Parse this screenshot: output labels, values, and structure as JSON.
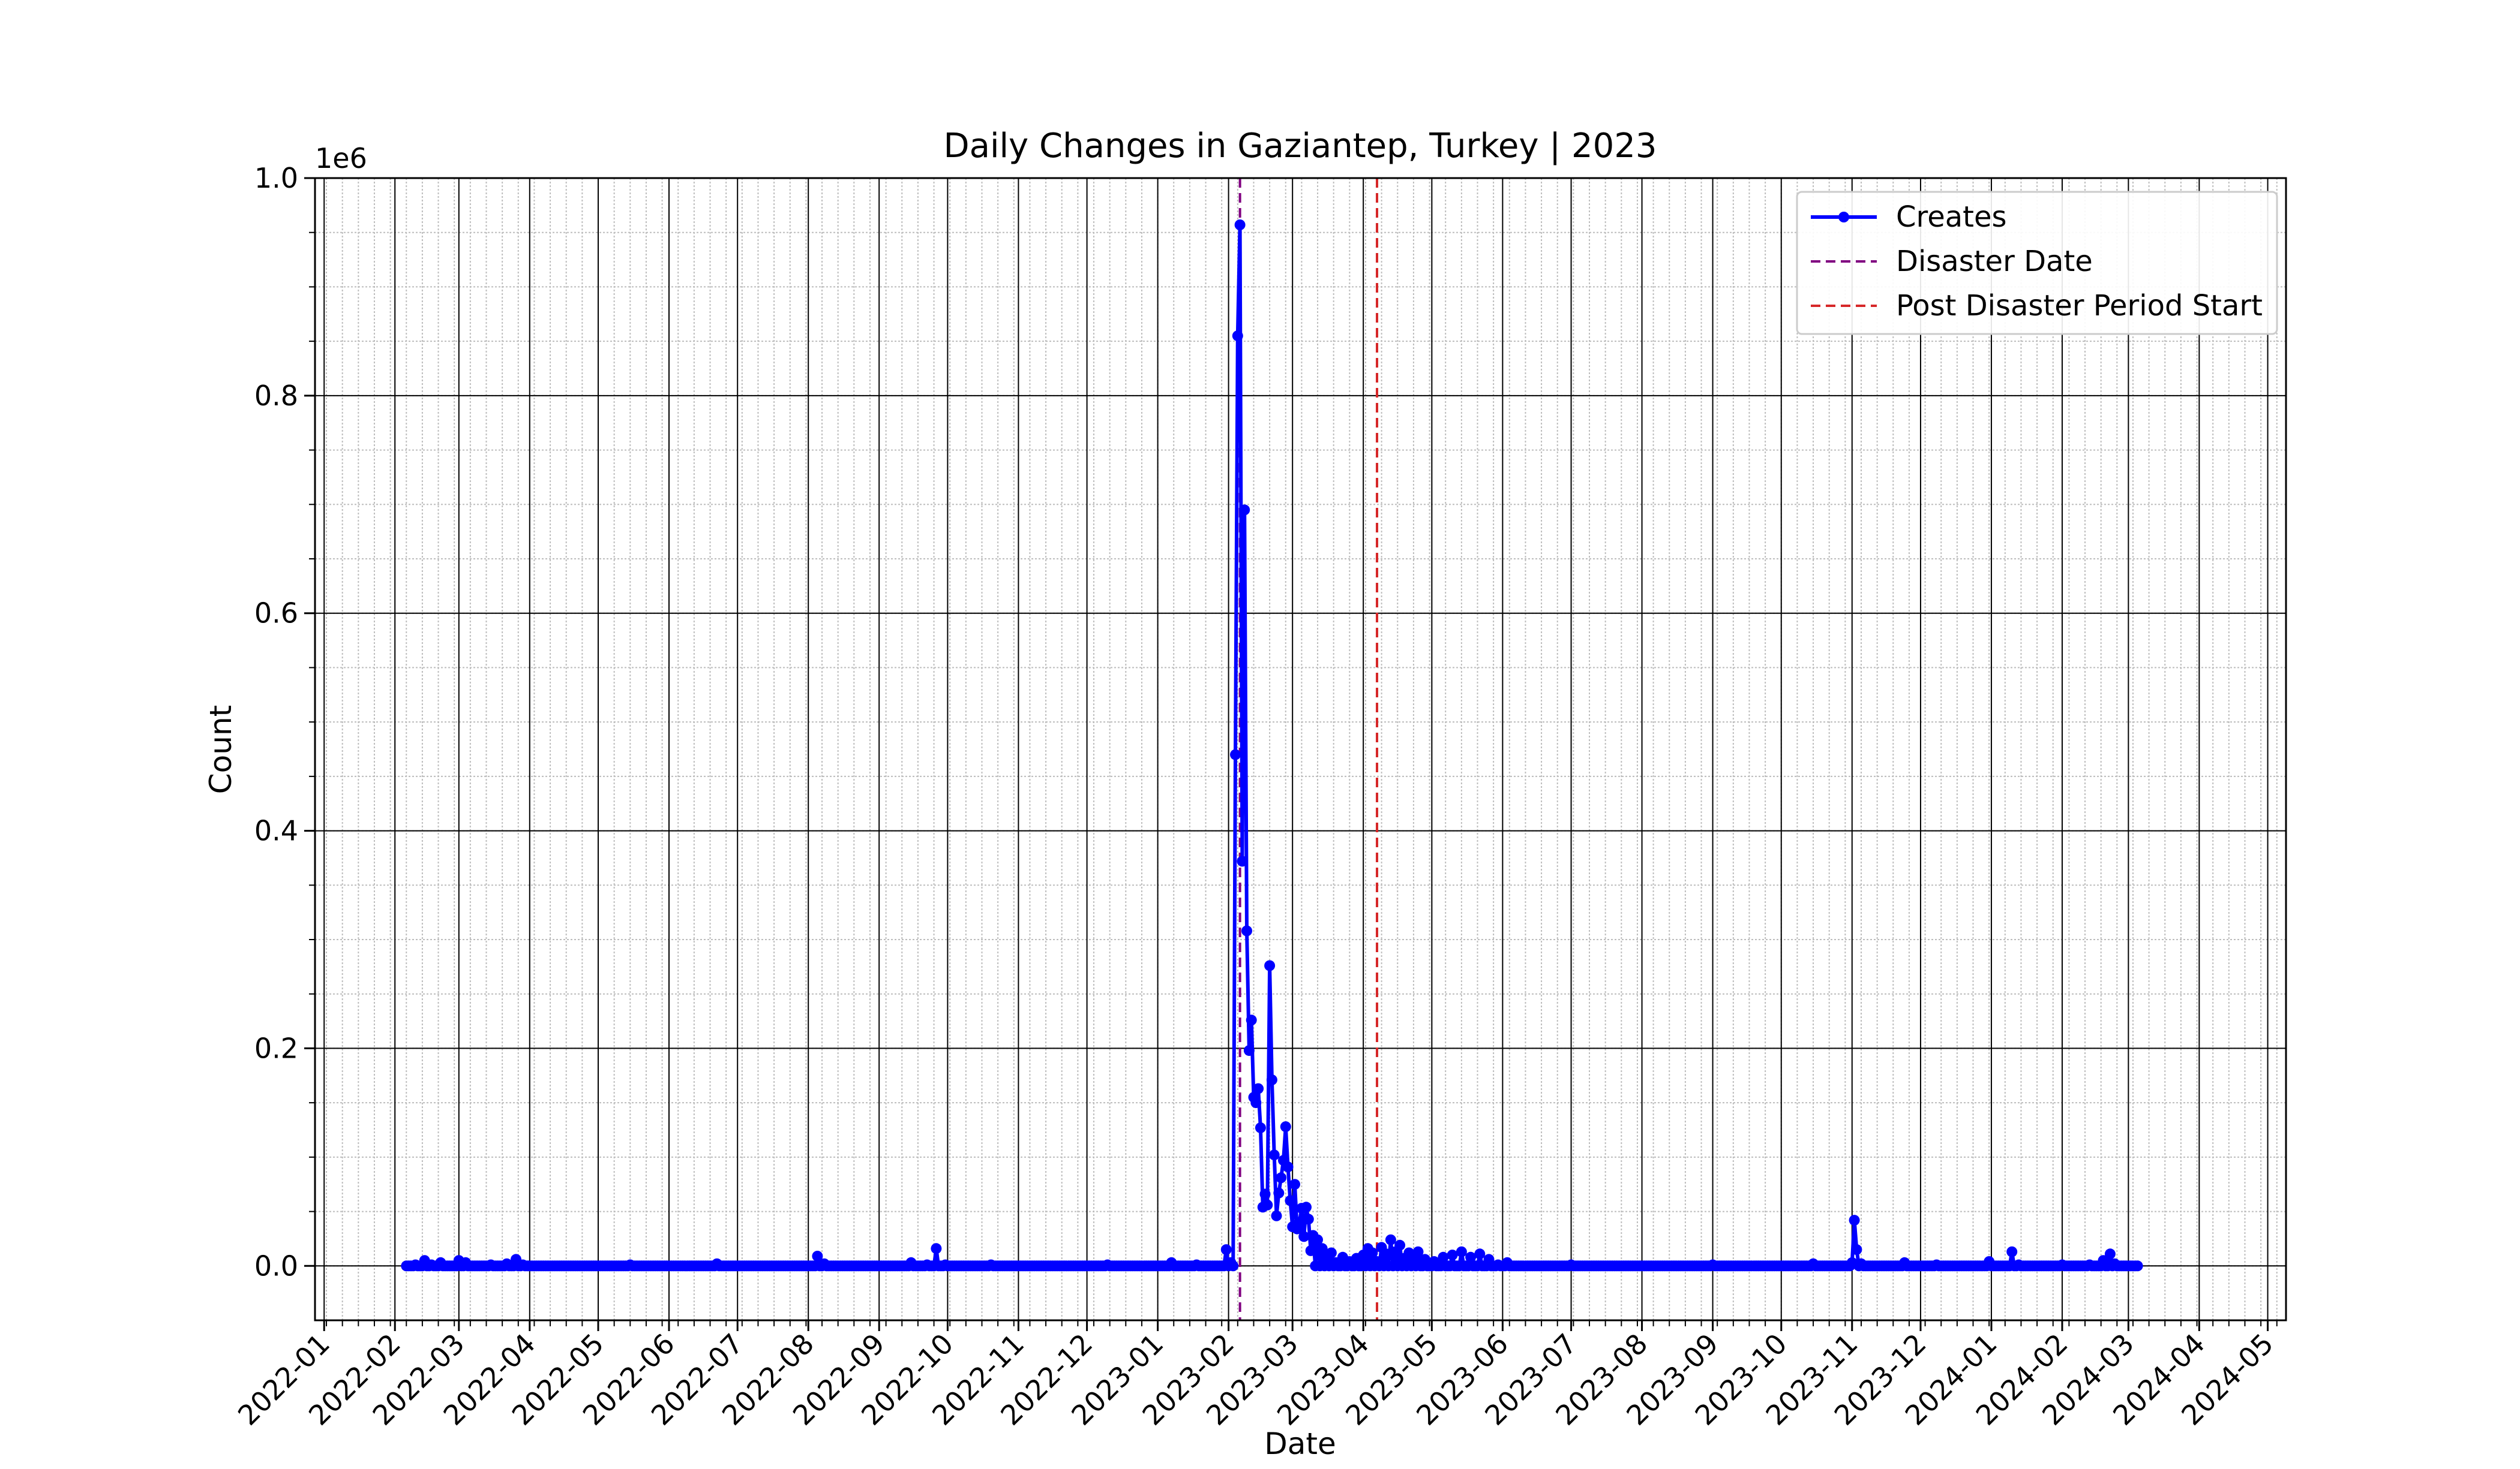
{
  "chart_data": {
    "type": "line",
    "title": "Daily Changes in Gaziantep, Turkey | 2023",
    "xlabel": "Date",
    "ylabel": "Count",
    "y_offset_label": "1e6",
    "y_scale_factor": 1000000,
    "xlim": [
      "2021-12-28",
      "2024-05-09"
    ],
    "ylim": [
      -0.05,
      1.0
    ],
    "y_ticks": [
      0.0,
      0.2,
      0.4,
      0.6,
      0.8,
      1.0
    ],
    "y_tick_labels": [
      "0.0",
      "0.2",
      "0.4",
      "0.6",
      "0.8",
      "1.0"
    ],
    "y_minor_step": 0.05,
    "x_ticks": [
      "2022-01-01",
      "2022-02-01",
      "2022-03-01",
      "2022-04-01",
      "2022-05-01",
      "2022-06-01",
      "2022-07-01",
      "2022-08-01",
      "2022-09-01",
      "2022-10-01",
      "2022-11-01",
      "2022-12-01",
      "2023-01-01",
      "2023-02-01",
      "2023-03-01",
      "2023-04-01",
      "2023-05-01",
      "2023-06-01",
      "2023-07-01",
      "2023-08-01",
      "2023-09-01",
      "2023-10-01",
      "2023-11-01",
      "2023-12-01",
      "2024-01-01",
      "2024-02-01",
      "2024-03-01",
      "2024-04-01",
      "2024-05-01"
    ],
    "x_tick_labels": [
      "2022-01",
      "2022-02",
      "2022-03",
      "2022-04",
      "2022-05",
      "2022-06",
      "2022-07",
      "2022-08",
      "2022-09",
      "2022-10",
      "2022-11",
      "2022-12",
      "2023-01",
      "2023-02",
      "2023-03",
      "2023-04",
      "2023-05",
      "2023-06",
      "2023-07",
      "2023-08",
      "2023-09",
      "2023-10",
      "2023-11",
      "2023-12",
      "2024-01",
      "2024-02",
      "2024-03",
      "2024-04",
      "2024-05"
    ],
    "grid": true,
    "minor_grid": true,
    "legend_position": "upper right",
    "legend": [
      {
        "label": "Creates",
        "style": "line-marker",
        "color": "#0000ff"
      },
      {
        "label": "Disaster Date",
        "style": "dashed",
        "color": "#800080"
      },
      {
        "label": "Post Disaster Period Start",
        "style": "dashed",
        "color": "#d62728"
      }
    ],
    "vlines": [
      {
        "name": "Disaster Date",
        "x": "2023-02-06",
        "color": "#800080"
      },
      {
        "name": "Post Disaster Period Start",
        "x": "2023-04-07",
        "color": "#d62728"
      }
    ],
    "series": [
      {
        "name": "Creates",
        "color": "#0000ff",
        "baseline_value": 0,
        "x_start": "2022-02-06",
        "x_end": "2024-03-05",
        "points": [
          [
            "2022-02-06",
            0.0
          ],
          [
            "2022-02-10",
            0.001
          ],
          [
            "2022-02-14",
            0.005
          ],
          [
            "2022-02-17",
            0.001
          ],
          [
            "2022-02-21",
            0.003
          ],
          [
            "2022-02-25",
            0.0
          ],
          [
            "2022-03-01",
            0.005
          ],
          [
            "2022-03-04",
            0.003
          ],
          [
            "2022-03-08",
            0.0
          ],
          [
            "2022-03-15",
            0.001
          ],
          [
            "2022-03-22",
            0.002
          ],
          [
            "2022-03-26",
            0.006
          ],
          [
            "2022-03-29",
            0.001
          ],
          [
            "2022-04-15",
            0.0
          ],
          [
            "2022-05-15",
            0.001
          ],
          [
            "2022-06-10",
            0.0
          ],
          [
            "2022-06-22",
            0.002
          ],
          [
            "2022-07-15",
            0.0
          ],
          [
            "2022-08-05",
            0.009
          ],
          [
            "2022-08-08",
            0.002
          ],
          [
            "2022-08-15",
            0.0
          ],
          [
            "2022-09-10",
            0.0
          ],
          [
            "2022-09-15",
            0.003
          ],
          [
            "2022-09-22",
            0.001
          ],
          [
            "2022-09-26",
            0.016
          ],
          [
            "2022-09-30",
            0.001
          ],
          [
            "2022-10-20",
            0.001
          ],
          [
            "2022-11-15",
            0.0
          ],
          [
            "2022-12-10",
            0.001
          ],
          [
            "2023-01-07",
            0.003
          ],
          [
            "2023-01-18",
            0.001
          ],
          [
            "2023-01-31",
            0.015
          ],
          [
            "2023-02-02",
            0.003
          ],
          [
            "2023-02-04",
            0.47
          ],
          [
            "2023-02-05",
            0.855
          ],
          [
            "2023-02-06",
            0.957
          ],
          [
            "2023-02-07",
            0.372
          ],
          [
            "2023-02-08",
            0.695
          ],
          [
            "2023-02-09",
            0.308
          ],
          [
            "2023-02-10",
            0.198
          ],
          [
            "2023-02-11",
            0.226
          ],
          [
            "2023-02-12",
            0.155
          ],
          [
            "2023-02-13",
            0.15
          ],
          [
            "2023-02-14",
            0.163
          ],
          [
            "2023-02-15",
            0.127
          ],
          [
            "2023-02-16",
            0.054
          ],
          [
            "2023-02-17",
            0.066
          ],
          [
            "2023-02-18",
            0.056
          ],
          [
            "2023-02-19",
            0.276
          ],
          [
            "2023-02-20",
            0.171
          ],
          [
            "2023-02-21",
            0.102
          ],
          [
            "2023-02-22",
            0.046
          ],
          [
            "2023-02-23",
            0.067
          ],
          [
            "2023-02-24",
            0.081
          ],
          [
            "2023-02-25",
            0.097
          ],
          [
            "2023-02-26",
            0.128
          ],
          [
            "2023-02-27",
            0.091
          ],
          [
            "2023-02-28",
            0.06
          ],
          [
            "2023-03-01",
            0.036
          ],
          [
            "2023-03-02",
            0.075
          ],
          [
            "2023-03-03",
            0.034
          ],
          [
            "2023-03-04",
            0.04
          ],
          [
            "2023-03-05",
            0.053
          ],
          [
            "2023-03-06",
            0.027
          ],
          [
            "2023-03-07",
            0.054
          ],
          [
            "2023-03-08",
            0.043
          ],
          [
            "2023-03-09",
            0.014
          ],
          [
            "2023-03-10",
            0.028
          ],
          [
            "2023-03-12",
            0.024
          ],
          [
            "2023-03-14",
            0.016
          ],
          [
            "2023-03-16",
            0.008
          ],
          [
            "2023-03-18",
            0.012
          ],
          [
            "2023-03-20",
            0.003
          ],
          [
            "2023-03-23",
            0.008
          ],
          [
            "2023-03-26",
            0.004
          ],
          [
            "2023-03-29",
            0.007
          ],
          [
            "2023-04-01",
            0.01
          ],
          [
            "2023-04-03",
            0.016
          ],
          [
            "2023-04-05",
            0.012
          ],
          [
            "2023-04-07",
            0.004
          ],
          [
            "2023-04-09",
            0.017
          ],
          [
            "2023-04-11",
            0.011
          ],
          [
            "2023-04-13",
            0.024
          ],
          [
            "2023-04-15",
            0.013
          ],
          [
            "2023-04-17",
            0.019
          ],
          [
            "2023-04-19",
            0.007
          ],
          [
            "2023-04-21",
            0.012
          ],
          [
            "2023-04-23",
            0.01
          ],
          [
            "2023-04-25",
            0.013
          ],
          [
            "2023-04-28",
            0.006
          ],
          [
            "2023-05-02",
            0.004
          ],
          [
            "2023-05-06",
            0.008
          ],
          [
            "2023-05-10",
            0.01
          ],
          [
            "2023-05-14",
            0.013
          ],
          [
            "2023-05-18",
            0.008
          ],
          [
            "2023-05-22",
            0.011
          ],
          [
            "2023-05-26",
            0.006
          ],
          [
            "2023-05-30",
            0.001
          ],
          [
            "2023-06-03",
            0.003
          ],
          [
            "2023-06-10",
            0.0
          ],
          [
            "2023-07-01",
            0.001
          ],
          [
            "2023-08-01",
            0.0
          ],
          [
            "2023-09-01",
            0.001
          ],
          [
            "2023-10-01",
            0.0
          ],
          [
            "2023-10-15",
            0.002
          ],
          [
            "2023-11-01",
            0.003
          ],
          [
            "2023-11-02",
            0.042
          ],
          [
            "2023-11-03",
            0.015
          ],
          [
            "2023-11-05",
            0.002
          ],
          [
            "2023-11-12",
            0.0
          ],
          [
            "2023-11-24",
            0.003
          ],
          [
            "2023-12-08",
            0.001
          ],
          [
            "2023-12-31",
            0.004
          ],
          [
            "2024-01-04",
            0.0
          ],
          [
            "2024-01-10",
            0.013
          ],
          [
            "2024-01-13",
            0.001
          ],
          [
            "2024-02-01",
            0.001
          ],
          [
            "2024-02-13",
            0.001
          ],
          [
            "2024-02-19",
            0.005
          ],
          [
            "2024-02-22",
            0.011
          ],
          [
            "2024-02-24",
            0.002
          ],
          [
            "2024-03-05",
            0.0
          ]
        ]
      }
    ]
  }
}
